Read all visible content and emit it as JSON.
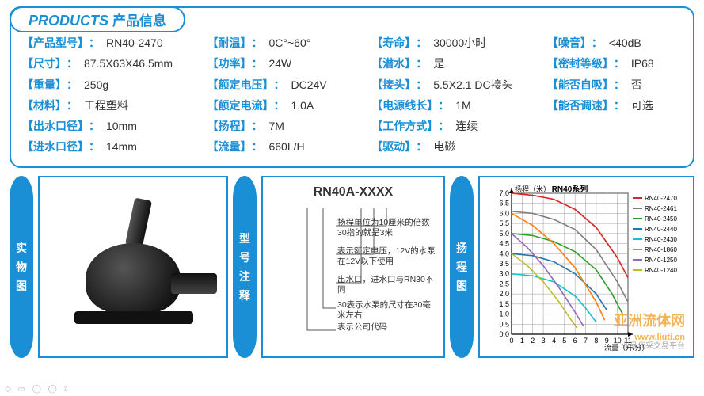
{
  "header": {
    "title_en": "PRODUCTS",
    "title_cn": "产品信息"
  },
  "specs": {
    "col1": [
      {
        "label": "【产品型号】",
        "value": "RN40-2470"
      },
      {
        "label": "【尺寸】",
        "value": "87.5X63X46.5mm"
      },
      {
        "label": "【重量】",
        "value": "250g"
      },
      {
        "label": "【材料】",
        "value": "工程塑料"
      },
      {
        "label": "【出水口径】",
        "value": "10mm"
      },
      {
        "label": "【进水口径】",
        "value": "14mm"
      }
    ],
    "col2": [
      {
        "label": "【耐温】",
        "value": "0C°~60°"
      },
      {
        "label": "【功率】",
        "value": "24W"
      },
      {
        "label": "【额定电压】",
        "value": "DC24V"
      },
      {
        "label": "【额定电流】",
        "value": "1.0A"
      },
      {
        "label": "【扬程】",
        "value": "7M"
      },
      {
        "label": "【流量】",
        "value": "660L/H"
      }
    ],
    "col3": [
      {
        "label": "【寿命】",
        "value": "30000小时"
      },
      {
        "label": "【潜水】",
        "value": "是"
      },
      {
        "label": "【接头】",
        "value": "5.5X2.1 DC接头"
      },
      {
        "label": "【电源线长】",
        "value": "1M"
      },
      {
        "label": "【工作方式】",
        "value": "连续"
      },
      {
        "label": "【驱动】",
        "value": "电磁"
      }
    ],
    "col4": [
      {
        "label": "【噪音】",
        "value": "<40dB"
      },
      {
        "label": "【密封等级】",
        "value": "IP68"
      },
      {
        "label": "【能否自吸】",
        "value": "否"
      },
      {
        "label": "【能否调速】",
        "value": "可选"
      }
    ]
  },
  "tabs": {
    "product_photo": "实物图",
    "model_note": "型号注释",
    "curve": "扬程图"
  },
  "model": {
    "code": "RN40A-XXXX",
    "notes": [
      "扬程单位为10厘米的倍数30指的就是3米",
      "表示额定电压，12V的水泵在12V以下使用",
      "出水口，进水口与RN30不同",
      "30表示水泵的尺寸在30毫米左右",
      "表示公司代码"
    ]
  },
  "chart": {
    "title": "RN40系列",
    "ylabel": "扬程（米）",
    "xlabel": "流量（升/分）",
    "xlim": [
      0,
      11
    ],
    "ylim": [
      0,
      7.0
    ],
    "ytick_step": 0.5,
    "xtick_step": 1,
    "grid_color": "#999",
    "background_color": "#ffffff",
    "axis_color": "#000",
    "label_fontsize": 9,
    "title_fontsize": 10,
    "legend": [
      "RN40-2470",
      "RN40-2461",
      "RN40-2450",
      "RN40-2440",
      "RN40-2430",
      "RN40-1860",
      "RN40-1250",
      "RN40-1240"
    ],
    "colors": {
      "RN40-2470": "#d62728",
      "RN40-2461": "#7f7f7f",
      "RN40-2450": "#2ca02c",
      "RN40-2440": "#1f77b4",
      "RN40-2430": "#17becf",
      "RN40-1860": "#ff7f0e",
      "RN40-1250": "#9467bd",
      "RN40-1240": "#bcbd22"
    },
    "series": {
      "RN40-2470": [
        [
          0,
          7.0
        ],
        [
          2,
          6.9
        ],
        [
          4,
          6.7
        ],
        [
          6,
          6.2
        ],
        [
          8,
          5.3
        ],
        [
          10,
          3.8
        ],
        [
          11,
          2.8
        ]
      ],
      "RN40-2461": [
        [
          0,
          6.1
        ],
        [
          2,
          6.0
        ],
        [
          4,
          5.7
        ],
        [
          6,
          5.2
        ],
        [
          8,
          4.2
        ],
        [
          10,
          2.6
        ],
        [
          11,
          1.6
        ]
      ],
      "RN40-2450": [
        [
          0,
          5.0
        ],
        [
          2,
          4.9
        ],
        [
          4,
          4.6
        ],
        [
          6,
          4.1
        ],
        [
          8,
          3.2
        ],
        [
          9.5,
          2.0
        ],
        [
          10.5,
          1.0
        ]
      ],
      "RN40-2440": [
        [
          0,
          4.0
        ],
        [
          2,
          3.9
        ],
        [
          4,
          3.6
        ],
        [
          6,
          3.0
        ],
        [
          8,
          2.0
        ],
        [
          9,
          1.2
        ]
      ],
      "RN40-2430": [
        [
          0,
          3.0
        ],
        [
          2,
          2.9
        ],
        [
          4,
          2.6
        ],
        [
          6,
          1.9
        ],
        [
          7,
          1.3
        ],
        [
          8,
          0.6
        ]
      ],
      "RN40-1860": [
        [
          0,
          6.0
        ],
        [
          2,
          5.4
        ],
        [
          4,
          4.5
        ],
        [
          6,
          3.3
        ],
        [
          8,
          1.6
        ],
        [
          8.8,
          0.7
        ]
      ],
      "RN40-1250": [
        [
          0,
          5.0
        ],
        [
          1.5,
          4.3
        ],
        [
          3,
          3.4
        ],
        [
          4.5,
          2.3
        ],
        [
          6,
          1.1
        ],
        [
          6.8,
          0.4
        ]
      ],
      "RN40-1240": [
        [
          0,
          4.0
        ],
        [
          1.5,
          3.4
        ],
        [
          3,
          2.6
        ],
        [
          4.5,
          1.6
        ],
        [
          5.5,
          0.8
        ],
        [
          6.2,
          0.3
        ]
      ]
    }
  },
  "watermark": {
    "name": "亚洲流体网",
    "url": "www.liuti.cn",
    "tagline": "工业品代采交易平台"
  }
}
